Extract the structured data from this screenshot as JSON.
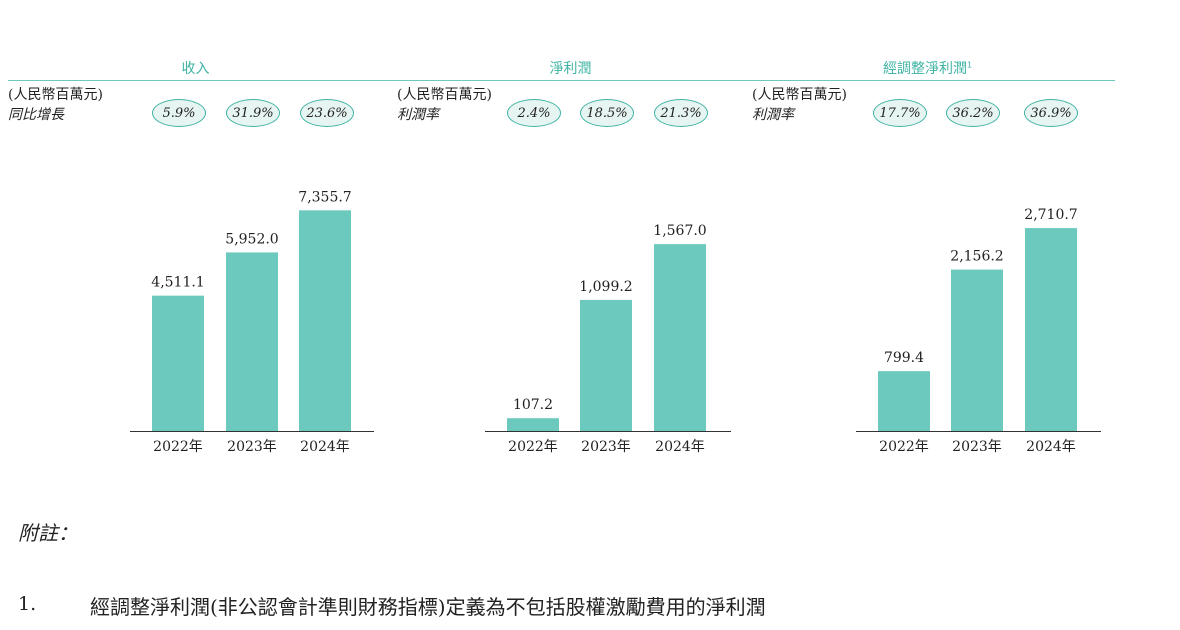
{
  "chart_data": [
    {
      "type": "bar",
      "title": "收入",
      "unit": "(人民幣百萬元)",
      "ratio_label": "同比增長",
      "ratios": [
        "5.9%",
        "31.9%",
        "23.6%"
      ],
      "categories": [
        "2022年",
        "2023年",
        "2024年"
      ],
      "value_labels": [
        "4,511.1",
        "5,952.0",
        "7,355.7"
      ],
      "values": [
        4511.1,
        5952.0,
        7355.7
      ],
      "ymax": 8000,
      "color": "#6bc9bd"
    },
    {
      "type": "bar",
      "title": "淨利潤",
      "unit": "(人民幣百萬元)",
      "ratio_label": "利潤率",
      "ratios": [
        "2.4%",
        "18.5%",
        "21.3%"
      ],
      "categories": [
        "2022年",
        "2023年",
        "2024年"
      ],
      "value_labels": [
        "107.2",
        "1,099.2",
        "1,567.0"
      ],
      "values": [
        107.2,
        1099.2,
        1567.0
      ],
      "ymax": 2700,
      "color": "#6bc9bd"
    },
    {
      "type": "bar",
      "title": "經調整淨利潤",
      "title_sup": "1",
      "unit": "(人民幣百萬元)",
      "ratio_label": "利潤率",
      "ratios": [
        "17.7%",
        "36.2%",
        "36.9%"
      ],
      "categories": [
        "2022年",
        "2023年",
        "2024年"
      ],
      "value_labels": [
        "799.4",
        "2,156.2",
        "2,710.7"
      ],
      "values": [
        799.4,
        2156.2,
        2710.7
      ],
      "ymax": 3500,
      "color": "#6bc9bd"
    }
  ],
  "notes": {
    "title": "附註：",
    "items": [
      {
        "number": "1.",
        "text": "經調整淨利潤(非公認會計準則財務指標)定義為不包括股權激勵費用的淨利潤"
      }
    ]
  }
}
